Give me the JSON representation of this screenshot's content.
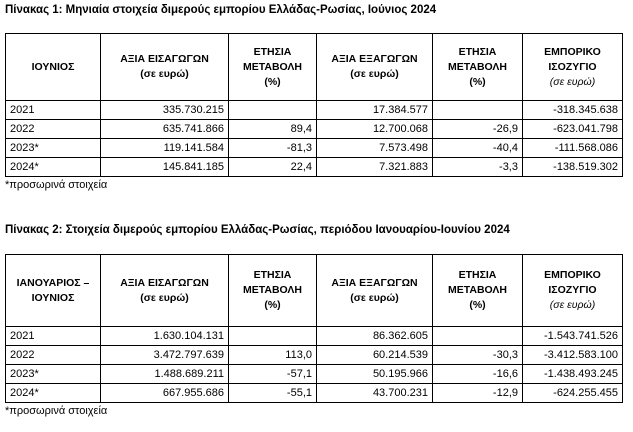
{
  "table1": {
    "title": "Πίνακας 1: Μηνιαία στοιχεία διμερούς εμπορίου Ελλάδας-Ρωσίας, Ιούνιος 2024",
    "header": [
      [
        "ΙΟΥΝΙΟΣ"
      ],
      [
        "ΑΞΙΑ ΕΙΣΑΓΩΓΩΝ",
        "(σε ευρώ)"
      ],
      [
        "ΕΤΗΣΙΑ",
        "ΜΕΤΑΒΟΛΗ",
        "(%)"
      ],
      [
        "ΑΞΙΑ ΕΞΑΓΩΓΩΝ",
        "(σε ευρώ)"
      ],
      [
        "ΕΤΗΣΙΑ",
        "ΜΕΤΑΒΟΛΗ",
        "(%)"
      ],
      [
        "ΕΜΠΟΡΙΚΟ",
        "ΙΣΟΖΥΓΙΟ",
        "(σε ευρώ)"
      ]
    ],
    "rows": [
      [
        "2021",
        "335.730.215",
        null,
        "17.384.577",
        null,
        "-318.345.638"
      ],
      [
        "2022",
        "635.741.866",
        "89,4",
        "12.700.068",
        "-26,9",
        "-623.041.798"
      ],
      [
        "2023*",
        "119.141.584",
        "-81,3",
        "7.573.498",
        "-40,4",
        "-111.568.086"
      ],
      [
        "2024*",
        "145.841.185",
        "22,4",
        "7.321.883",
        "-3,3",
        "-138.519.302"
      ]
    ],
    "footnote": "*προσωρινά στοιχεία"
  },
  "table2": {
    "title": "Πίνακας 2: Στοιχεία διμερούς εμπορίου Ελλάδας-Ρωσίας, περιόδου Ιανουαρίου-Ιουνίου 2024",
    "header": [
      [
        "ΙΑΝΟΥΑΡΙΟΣ –",
        "ΙΟΥΝΙΟΣ"
      ],
      [
        "ΑΞΙΑ ΕΙΣΑΓΩΓΩΝ",
        "(σε ευρώ)"
      ],
      [
        "ΕΤΗΣΙΑ",
        "ΜΕΤΑΒΟΛΗ",
        "(%)"
      ],
      [
        "ΑΞΙΑ ΕΞΑΓΩΓΩΝ",
        "(σε ευρώ)"
      ],
      [
        "ΕΤΗΣΙΑ",
        "ΜΕΤΑΒΟΛΗ",
        "(%)"
      ],
      [
        "ΕΜΠΟΡΙΚΟ",
        "ΙΣΟΖΥΓΙΟ",
        "(σε ευρώ)"
      ]
    ],
    "rows": [
      [
        "2021",
        "1.630.104.131",
        null,
        "86.362.605",
        null,
        "-1.543.741.526"
      ],
      [
        "2022",
        "3.472.797.639",
        "113,0",
        "60.214.539",
        "-30,3",
        "-3.412.583.100"
      ],
      [
        "2023*",
        "1.488.689.211",
        "-57,1",
        "50.195.966",
        "-16,6",
        "-1.438.493.245"
      ],
      [
        "2024*",
        "667.955.686",
        "-55,1",
        "43.700.231",
        "-12,9",
        "-624.255.455"
      ]
    ],
    "footnote": "*προσωρινά στοιχεία"
  }
}
